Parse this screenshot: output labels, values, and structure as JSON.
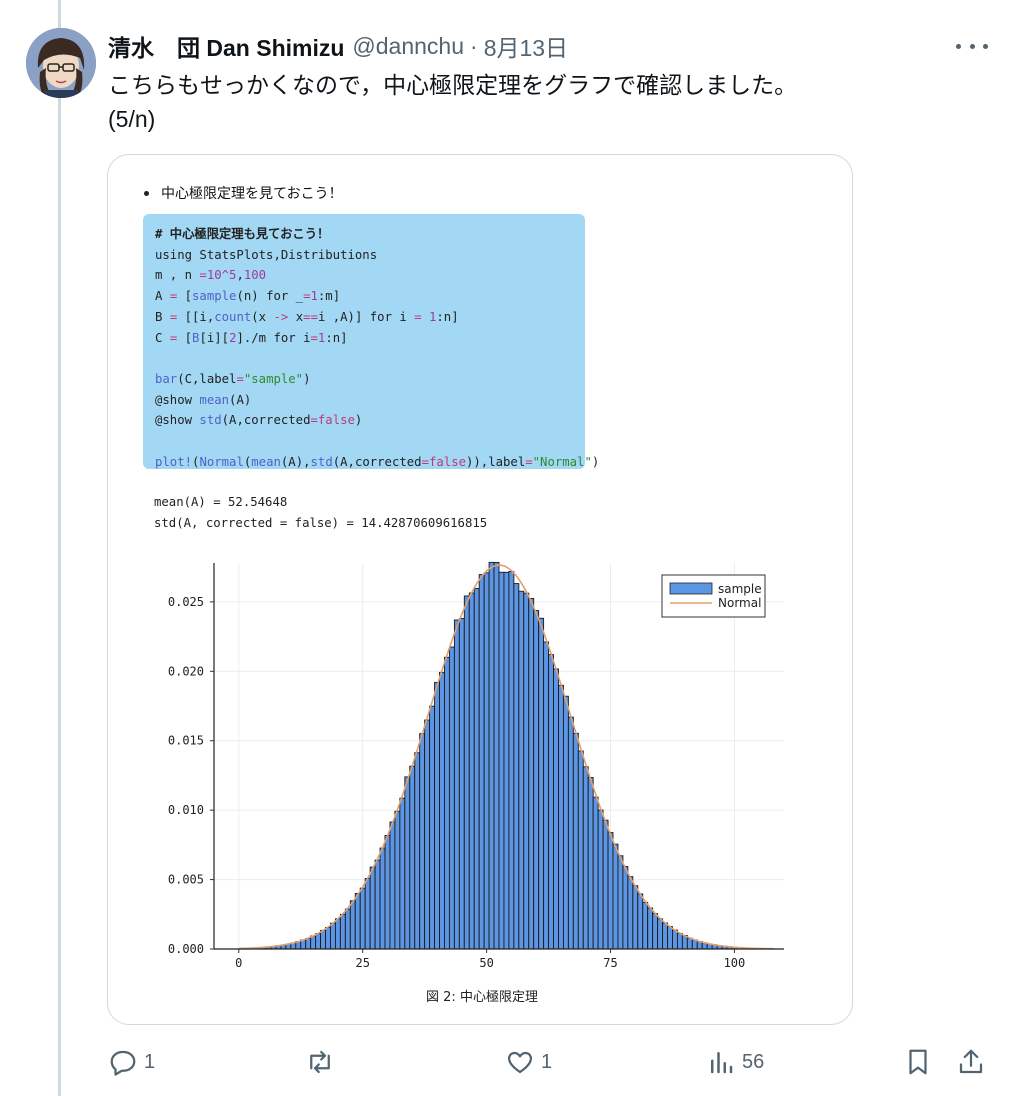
{
  "tweet": {
    "author_name": "清水　団 Dan Shimizu",
    "handle": "@dannchu",
    "separator": "·",
    "date": "8月13日",
    "text_line1": "こちらもせっかくなので，中心極限定理をグラフで確認しました。",
    "text_line2": "(5/n)"
  },
  "media": {
    "bullet": "中心極限定理を見ておこう！",
    "code_comment": "# 中心極限定理も見ておこう！",
    "output_line1": "mean(A) = 52.54648",
    "output_line2": "std(A, corrected = false) = 14.42870609616815",
    "figure_caption": "図 2:  中心極限定理"
  },
  "actions": {
    "reply_count": "1",
    "retweet_count": "",
    "like_count": "1",
    "views_count": "56"
  },
  "icons": [
    "reply-icon",
    "retweet-icon",
    "like-icon",
    "views-icon",
    "bookmark-icon",
    "share-icon",
    "more-icon"
  ],
  "colors": {
    "bar_fill": "#5b95e3",
    "normal_line": "#e0a070",
    "code_bg": "#a3d8f5",
    "muted": "#536471"
  },
  "chart_data": {
    "type": "bar",
    "title": "",
    "xlabel": "",
    "ylabel": "",
    "xlim": [
      -5,
      110
    ],
    "ylim": [
      0,
      0.0278
    ],
    "xticks": [
      0,
      25,
      50,
      75,
      100
    ],
    "yticks": [
      0.0,
      0.005,
      0.01,
      0.015,
      0.02,
      0.025
    ],
    "ytick_labels": [
      "0.000",
      "0.005",
      "0.010",
      "0.015",
      "0.020",
      "0.025"
    ],
    "xtick_labels": [
      "0",
      "25",
      "50",
      "75",
      "100"
    ],
    "grid": true,
    "legend_position": "top-right",
    "series": [
      {
        "name": "sample",
        "kind": "bar",
        "mean": 52.54648,
        "std": 14.42870609616815,
        "x_range": [
          1,
          100
        ]
      },
      {
        "name": "Normal",
        "kind": "line",
        "mean": 52.54648,
        "std": 14.42870609616815
      }
    ]
  }
}
